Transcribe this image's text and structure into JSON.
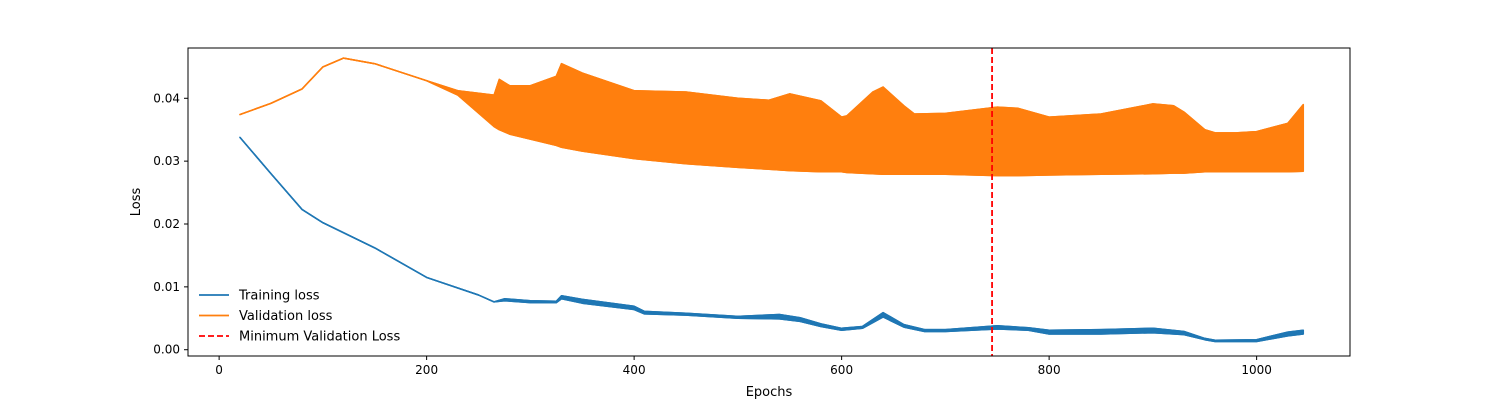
{
  "chart_data": {
    "type": "line",
    "title": "",
    "xlabel": "Epochs",
    "ylabel": "Loss",
    "xlim": [
      -30,
      1090
    ],
    "ylim": [
      -0.001,
      0.048
    ],
    "x_ticks": [
      0,
      200,
      400,
      600,
      800,
      1000
    ],
    "x_tick_labels": [
      "0",
      "200",
      "400",
      "600",
      "800",
      "1000"
    ],
    "y_ticks": [
      0.0,
      0.01,
      0.02,
      0.03,
      0.04
    ],
    "y_tick_labels": [
      "0.00",
      "0.01",
      "0.02",
      "0.03",
      "0.04"
    ],
    "grid": false,
    "legend_position": "lower-left",
    "legend": [
      "Training loss",
      "Validation loss",
      "Minimum Validation Loss"
    ],
    "series": [
      {
        "name": "Training loss",
        "color": "#1f77b4",
        "x": [
          20,
          50,
          80,
          100,
          150,
          200,
          250,
          265,
          275,
          300,
          325,
          330,
          350,
          400,
          410,
          450,
          500,
          540,
          560,
          580,
          600,
          620,
          640,
          660,
          680,
          700,
          750,
          780,
          800,
          850,
          900,
          930,
          950,
          960,
          1000,
          1030,
          1045
        ],
        "lower": [
          0.0338,
          0.028,
          0.0223,
          0.0202,
          0.0162,
          0.0115,
          0.0087,
          0.0076,
          0.0078,
          0.0075,
          0.0075,
          0.0081,
          0.0074,
          0.0064,
          0.0057,
          0.0055,
          0.005,
          0.0049,
          0.0045,
          0.0037,
          0.0031,
          0.0034,
          0.0052,
          0.0036,
          0.0029,
          0.0029,
          0.0033,
          0.0031,
          0.0025,
          0.0025,
          0.0027,
          0.0024,
          0.0016,
          0.0013,
          0.0013,
          0.0022,
          0.0025
        ],
        "upper": [
          0.0338,
          0.028,
          0.0223,
          0.0202,
          0.0162,
          0.0115,
          0.0087,
          0.0076,
          0.0081,
          0.0078,
          0.0077,
          0.0086,
          0.008,
          0.0069,
          0.0061,
          0.0058,
          0.0053,
          0.0056,
          0.0051,
          0.0041,
          0.0034,
          0.0037,
          0.0059,
          0.004,
          0.0032,
          0.0032,
          0.0038,
          0.0035,
          0.0031,
          0.0032,
          0.0034,
          0.0029,
          0.0018,
          0.0015,
          0.0016,
          0.0028,
          0.0031
        ]
      },
      {
        "name": "Validation loss",
        "color": "#ff7f0e",
        "x": [
          20,
          50,
          80,
          100,
          120,
          150,
          200,
          230,
          265,
          270,
          280,
          300,
          325,
          330,
          350,
          400,
          450,
          500,
          530,
          550,
          580,
          600,
          605,
          630,
          640,
          660,
          670,
          700,
          750,
          770,
          800,
          850,
          900,
          920,
          930,
          950,
          960,
          980,
          1000,
          1030,
          1045
        ],
        "lower": [
          0.0374,
          0.0392,
          0.0415,
          0.045,
          0.0464,
          0.0455,
          0.0428,
          0.0405,
          0.0355,
          0.035,
          0.0343,
          0.0335,
          0.0325,
          0.0322,
          0.0316,
          0.0304,
          0.0296,
          0.029,
          0.0287,
          0.0285,
          0.0283,
          0.0283,
          0.0282,
          0.028,
          0.0279,
          0.0279,
          0.0279,
          0.0279,
          0.0277,
          0.0277,
          0.0278,
          0.0279,
          0.028,
          0.0281,
          0.0281,
          0.0283,
          0.0283,
          0.0283,
          0.0283,
          0.0283,
          0.0284
        ],
        "upper": [
          0.0374,
          0.0392,
          0.0415,
          0.045,
          0.0464,
          0.0455,
          0.0428,
          0.0412,
          0.0405,
          0.043,
          0.042,
          0.042,
          0.0435,
          0.0455,
          0.044,
          0.0412,
          0.041,
          0.04,
          0.0397,
          0.0407,
          0.0396,
          0.037,
          0.0372,
          0.041,
          0.0418,
          0.0388,
          0.0375,
          0.0376,
          0.0386,
          0.0384,
          0.037,
          0.0375,
          0.0391,
          0.0388,
          0.0378,
          0.035,
          0.0345,
          0.0345,
          0.0347,
          0.036,
          0.039
        ]
      }
    ],
    "reference_line": {
      "name": "Minimum Validation Loss",
      "orientation": "vertical",
      "x": 745,
      "color": "#ff0000",
      "style": "dashed"
    }
  }
}
